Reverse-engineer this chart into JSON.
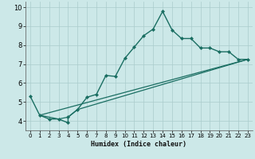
{
  "title": "",
  "xlabel": "Humidex (Indice chaleur)",
  "ylabel": "",
  "bg_color": "#cce8e8",
  "grid_color": "#aacccc",
  "line_color": "#1a6e62",
  "xlim": [
    -0.5,
    23.5
  ],
  "ylim": [
    3.5,
    10.3
  ],
  "xticks": [
    0,
    1,
    2,
    3,
    4,
    5,
    6,
    7,
    8,
    9,
    10,
    11,
    12,
    13,
    14,
    15,
    16,
    17,
    18,
    19,
    20,
    21,
    22,
    23
  ],
  "yticks": [
    4,
    5,
    6,
    7,
    8,
    9,
    10
  ],
  "lines": [
    {
      "x": [
        0,
        1,
        2,
        3,
        4,
        4,
        5,
        6,
        7,
        8,
        9,
        10,
        11,
        12,
        13,
        14,
        15,
        16,
        17,
        18,
        19,
        20,
        21,
        22,
        23
      ],
      "y": [
        5.3,
        4.3,
        4.1,
        4.1,
        3.9,
        4.2,
        4.6,
        5.25,
        5.4,
        6.4,
        6.35,
        7.3,
        7.9,
        8.5,
        8.85,
        9.78,
        8.8,
        8.35,
        8.35,
        7.85,
        7.85,
        7.65,
        7.65,
        7.25,
        7.25
      ],
      "marker": "D",
      "markersize": 2.0,
      "linewidth": 1.0
    },
    {
      "x": [
        1,
        3,
        4,
        5,
        23
      ],
      "y": [
        4.3,
        4.1,
        4.2,
        4.6,
        7.25
      ],
      "marker": null,
      "linewidth": 0.9
    },
    {
      "x": [
        1,
        23
      ],
      "y": [
        4.3,
        7.25
      ],
      "marker": null,
      "linewidth": 0.9
    }
  ]
}
